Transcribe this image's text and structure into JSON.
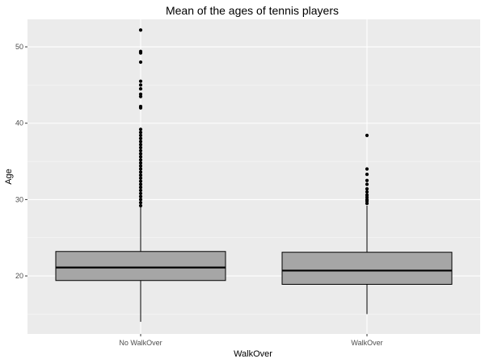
{
  "chart_data": {
    "type": "box",
    "title": "Mean of the ages of tennis players",
    "xlabel": "WalkOver",
    "ylabel": "Age",
    "categories": [
      "No WalkOver",
      "WalkOver"
    ],
    "ylim": [
      12.4,
      53.6
    ],
    "yticks": [
      20,
      30,
      40,
      50
    ],
    "grid": true,
    "legend": "none",
    "box_fill": "#a6a6a6",
    "panel_background": "#ebebeb",
    "boxes": [
      {
        "category": "No WalkOver",
        "min": 14.0,
        "q1": 19.4,
        "median": 21.1,
        "q3": 23.2,
        "whisker_high": 29.0,
        "outliers": [
          29.2,
          29.6,
          30.0,
          30.4,
          30.8,
          31.2,
          31.6,
          32.0,
          32.4,
          32.8,
          33.2,
          33.6,
          34.0,
          34.4,
          34.8,
          35.2,
          35.6,
          36.0,
          36.4,
          36.8,
          37.2,
          37.6,
          38.0,
          38.4,
          38.8,
          39.2,
          42.0,
          42.2,
          43.5,
          43.8,
          44.5,
          45.0,
          45.5,
          48.0,
          49.2,
          49.4,
          52.2
        ]
      },
      {
        "category": "WalkOver",
        "min": 15.0,
        "q1": 18.9,
        "median": 20.7,
        "q3": 23.1,
        "whisker_high": 29.2,
        "outliers": [
          29.5,
          29.8,
          30.0,
          30.3,
          30.6,
          31.0,
          31.4,
          32.0,
          32.5,
          33.3,
          34.0,
          38.4
        ]
      }
    ]
  }
}
